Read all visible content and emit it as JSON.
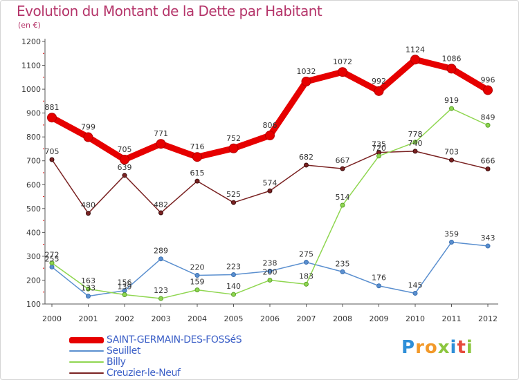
{
  "title": "Evolution du Montant de la Dette par Habitant",
  "subtitle": "(en €)",
  "logo": {
    "letters": [
      "P",
      "r",
      "o",
      "x",
      "i",
      "t",
      "i"
    ],
    "colors": [
      "#2f8fd8",
      "#f2992a",
      "#f2992a",
      "#8cc63f",
      "#2f8fd8",
      "#e64a3c",
      "#8cc63f"
    ]
  },
  "chart_data": {
    "type": "line",
    "title": "Evolution du Montant de la Dette par Habitant",
    "ylabel": "(en €)",
    "xlabel": "",
    "x": [
      "2000",
      "2001",
      "2002",
      "2003",
      "2004",
      "2005",
      "2006",
      "2007",
      "2008",
      "2009",
      "2010",
      "2011",
      "2012"
    ],
    "ylim": [
      100,
      1200
    ],
    "yticks": [
      100,
      200,
      300,
      400,
      500,
      600,
      700,
      800,
      900,
      1000,
      1100,
      1200
    ],
    "grid": false,
    "legend_position": "bottom-left",
    "series": [
      {
        "name": "SAINT-GERMAIN-DES-FOSSéS",
        "color": "#e60000",
        "values": [
          881,
          799,
          705,
          771,
          716,
          752,
          806,
          1032,
          1072,
          992,
          1124,
          1086,
          996
        ]
      },
      {
        "name": "Seuillet",
        "color": "#5a8fcf",
        "values": [
          255,
          133,
          156,
          289,
          220,
          223,
          238,
          275,
          235,
          176,
          145,
          359,
          343
        ]
      },
      {
        "name": "Billy",
        "color": "#8fd650",
        "values": [
          272,
          163,
          139,
          123,
          159,
          140,
          200,
          183,
          514,
          720,
          778,
          919,
          849
        ]
      },
      {
        "name": "Creuzier-le-Neuf",
        "color": "#7a2222",
        "values": [
          705,
          480,
          639,
          482,
          615,
          525,
          574,
          682,
          667,
          735,
          740,
          703,
          666
        ]
      }
    ]
  }
}
